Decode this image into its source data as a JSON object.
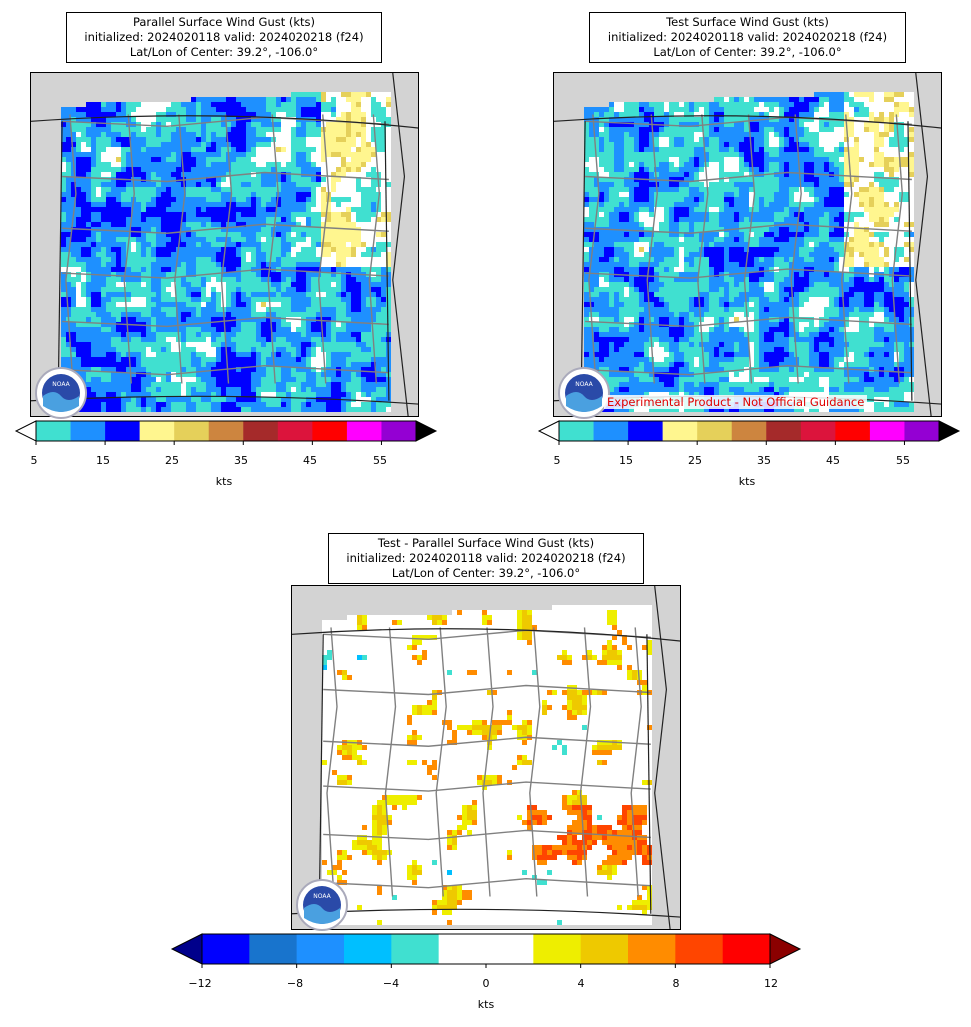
{
  "panels": [
    {
      "id": "parallel",
      "title_lines": [
        "Parallel Surface Wind Gust (kts)",
        "initialized: 2024020118 valid: 2024020218 (f24)",
        "Lat/Lon of Center: 39.2°, -106.0°"
      ],
      "colorbar": {
        "colors": [
          "#40e0d0",
          "#1e90ff",
          "#0000ff",
          "#fff68f",
          "#e5d05a",
          "#cd853f",
          "#a52a2a",
          "#dc143c",
          "#ff0000",
          "#ff00ff",
          "#9400d3"
        ],
        "extend_low": "#ffffff",
        "extend_high": "#000000",
        "ticks": [
          "5",
          "15",
          "25",
          "35",
          "45",
          "55"
        ],
        "label": "kts"
      }
    },
    {
      "id": "test",
      "title_lines": [
        "Test Surface Wind Gust (kts)",
        "initialized: 2024020118 valid: 2024020218 (f24)",
        "Lat/Lon of Center: 39.2°, -106.0°"
      ],
      "watermark": "Experimental Product - Not Official Guidance",
      "colorbar": {
        "colors": [
          "#40e0d0",
          "#1e90ff",
          "#0000ff",
          "#fff68f",
          "#e5d05a",
          "#cd853f",
          "#a52a2a",
          "#dc143c",
          "#ff0000",
          "#ff00ff",
          "#9400d3"
        ],
        "extend_low": "#ffffff",
        "extend_high": "#000000",
        "ticks": [
          "5",
          "15",
          "25",
          "35",
          "45",
          "55"
        ],
        "label": "kts"
      }
    },
    {
      "id": "difference",
      "title_lines": [
        "Test - Parallel Surface Wind Gust (kts)",
        "initialized: 2024020118 valid: 2024020218 (f24)",
        "Lat/Lon of Center: 39.2°, -106.0°"
      ],
      "colorbar": {
        "colors": [
          "#0000ff",
          "#1874cd",
          "#1e90ff",
          "#00bfff",
          "#40e0d0",
          "#ffffff",
          "#ffffff",
          "#eeee00",
          "#eec900",
          "#ff8c00",
          "#ff4500",
          "#ff0000"
        ],
        "extend_low": "#00008b",
        "extend_high": "#8b0000",
        "ticks": [
          "−12",
          "−8",
          "−4",
          "0",
          "4",
          "8",
          "12"
        ],
        "label": "kts"
      }
    }
  ],
  "logo_text": "NOAA",
  "colors": {
    "land_background": "#d3d3d3",
    "county_lines": "#808080",
    "state_lines": "#222222"
  }
}
